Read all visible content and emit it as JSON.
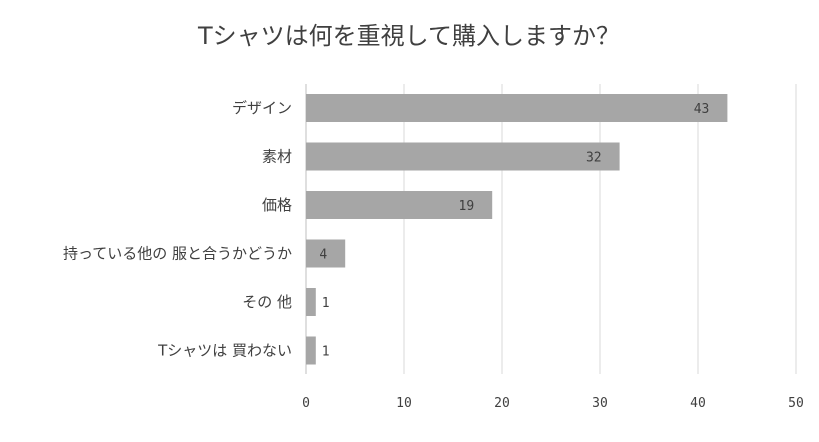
{
  "chart_data": {
    "type": "bar",
    "orientation": "horizontal",
    "title": "Tシャツは何を重視して購入しますか？",
    "categories": [
      "デザイン",
      "素材",
      "価格",
      "持っている他の 服と合うかどうか",
      "その 他",
      "Tシャツは 買わない"
    ],
    "values": [
      43,
      32,
      19,
      4,
      1,
      1
    ],
    "xlim": [
      0,
      50
    ],
    "ticks": [
      0,
      10,
      20,
      30,
      40,
      50
    ],
    "grid": "vertical",
    "legend": "none",
    "bar_color": "#a6a6a6"
  }
}
